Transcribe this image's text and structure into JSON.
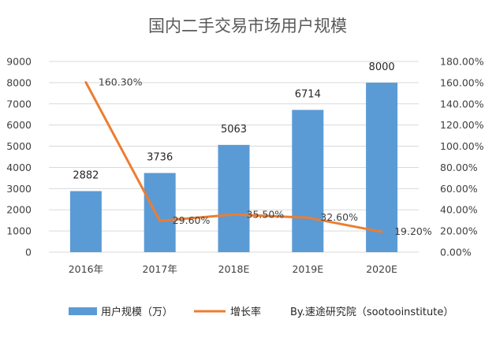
{
  "chart_data": {
    "type": "bar",
    "title": "国内二手交易市场用户规模",
    "categories": [
      "2016年",
      "2017年",
      "2018E",
      "2019E",
      "2020E"
    ],
    "series": [
      {
        "name": "用户规模（万）",
        "type": "bar",
        "axis": "left",
        "values": [
          2882,
          3736,
          5063,
          6714,
          8000
        ],
        "labels": [
          "2882",
          "3736",
          "5063",
          "6714",
          "8000"
        ]
      },
      {
        "name": "增长率",
        "type": "line",
        "axis": "right",
        "values": [
          160.3,
          29.6,
          35.5,
          32.6,
          19.2
        ],
        "labels": [
          "160.30%",
          "29.60%",
          "35.50%",
          "32.60%",
          "19.20%"
        ]
      }
    ],
    "y_left": {
      "ylim": [
        0,
        9000
      ],
      "ticks": [
        "0",
        "1000",
        "2000",
        "3000",
        "4000",
        "5000",
        "6000",
        "7000",
        "8000",
        "9000"
      ]
    },
    "y_right": {
      "ylim": [
        0,
        180
      ],
      "ticks": [
        "0.00%",
        "20.00%",
        "40.00%",
        "60.00%",
        "80.00%",
        "100.00%",
        "120.00%",
        "140.00%",
        "160.00%",
        "180.00%"
      ]
    },
    "grid": true,
    "legend_position": "bottom",
    "source_note": "By.速途研究院（sootooinstitute）",
    "colors": {
      "bar": "#5b9bd5",
      "line": "#ed7d31",
      "grid": "#d9d9d9"
    }
  }
}
